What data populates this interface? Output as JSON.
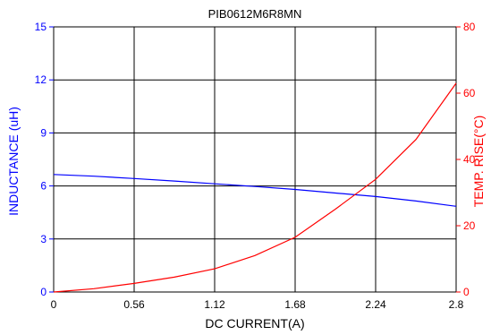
{
  "chart_data": {
    "type": "line",
    "title": "PIB0612M6R8MN",
    "xlabel": "DC CURRENT(A)",
    "ylabel_left": "INDUCTANCE (uH)",
    "ylabel_right": "TEMP. RISE(°C)",
    "xlim": [
      0,
      2.8
    ],
    "ylim_left": [
      0,
      15
    ],
    "ylim_right": [
      0,
      80
    ],
    "x_ticks": [
      "0",
      "0.56",
      "1.12",
      "1.68",
      "2.24",
      "2.8"
    ],
    "y_left_ticks": [
      "0",
      "3",
      "6",
      "9",
      "12",
      "15"
    ],
    "y_right_ticks": [
      "0",
      "20",
      "40",
      "60",
      "80"
    ],
    "grid": true,
    "series": [
      {
        "axis": "left",
        "color": "#0000ff",
        "x": [
          0,
          0.28,
          0.56,
          0.84,
          1.12,
          1.4,
          1.68,
          1.96,
          2.24,
          2.52,
          2.8
        ],
        "y": [
          6.65,
          6.55,
          6.42,
          6.28,
          6.12,
          5.97,
          5.8,
          5.6,
          5.4,
          5.15,
          4.85
        ]
      },
      {
        "axis": "right",
        "color": "#ff0000",
        "x": [
          0,
          0.28,
          0.56,
          0.84,
          1.12,
          1.4,
          1.68,
          1.96,
          2.24,
          2.52,
          2.8
        ],
        "y": [
          0,
          1,
          2.6,
          4.5,
          7,
          11,
          16.5,
          25,
          34,
          46,
          63
        ]
      }
    ],
    "colors": {
      "left_axis": "#0000ff",
      "right_axis": "#ff0000",
      "grid": "#000000"
    }
  }
}
